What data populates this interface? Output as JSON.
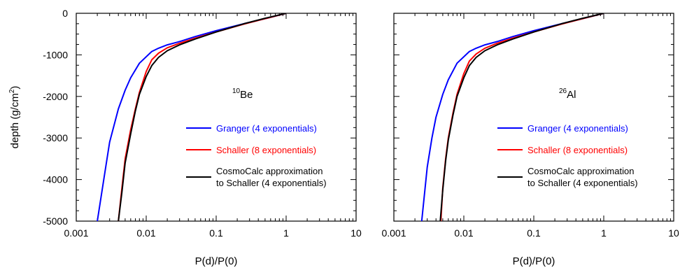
{
  "chart_data": [
    {
      "type": "line",
      "panel_label": {
        "sup": "10",
        "text": "Be"
      },
      "xlabel": "P(d)/P(0)",
      "ylabel": "depth (g/cm2)",
      "ylabel_parts": {
        "main": "depth (g/cm",
        "sup": "2",
        "end": ")"
      },
      "xscale": "log",
      "xlim": [
        0.001,
        10
      ],
      "ylim": [
        -5000,
        0
      ],
      "x_ticks": [
        0.001,
        0.01,
        0.1,
        1,
        10
      ],
      "x_tick_labels": [
        "0.001",
        "0.01",
        "0.1",
        "1",
        "10"
      ],
      "y_ticks": [
        0,
        -1000,
        -2000,
        -3000,
        -4000,
        -5000
      ],
      "y_tick_labels": [
        "0",
        "-1000",
        "-2000",
        "-3000",
        "-4000",
        "-5000"
      ],
      "grid": false,
      "legend_position": "lower-right",
      "series": [
        {
          "name": "Granger (4 exponentials)",
          "color": "#0000ff",
          "x": [
            1,
            0.5,
            0.25,
            0.1,
            0.05,
            0.03,
            0.02,
            0.015,
            0.012,
            0.008,
            0.006,
            0.005,
            0.004,
            0.003,
            0.0025,
            0.002
          ],
          "y": [
            0,
            -130,
            -250,
            -420,
            -560,
            -680,
            -760,
            -840,
            -920,
            -1200,
            -1550,
            -1850,
            -2300,
            -3100,
            -3950,
            -5000
          ]
        },
        {
          "name": "Schaller (8 exponentials)",
          "color": "#ff0000",
          "x": [
            1,
            0.5,
            0.25,
            0.1,
            0.05,
            0.03,
            0.02,
            0.015,
            0.012,
            0.01,
            0.008,
            0.007,
            0.006,
            0.005,
            0.0045,
            0.004
          ],
          "y": [
            0,
            -130,
            -260,
            -450,
            -600,
            -720,
            -830,
            -960,
            -1120,
            -1400,
            -1900,
            -2300,
            -2800,
            -3500,
            -4200,
            -5000
          ]
        },
        {
          "name": "CosmoCalc approximation\nto Schaller (4 exponentials)",
          "color": "#000000",
          "x": [
            1,
            0.5,
            0.25,
            0.1,
            0.05,
            0.03,
            0.02,
            0.015,
            0.012,
            0.01,
            0.008,
            0.007,
            0.006,
            0.005,
            0.0045,
            0.004
          ],
          "y": [
            0,
            -120,
            -250,
            -450,
            -620,
            -760,
            -900,
            -1060,
            -1260,
            -1520,
            -1950,
            -2350,
            -2900,
            -3600,
            -4300,
            -5000
          ]
        }
      ]
    },
    {
      "type": "line",
      "panel_label": {
        "sup": "26",
        "text": "Al"
      },
      "xlabel": "P(d)/P(0)",
      "ylabel": "",
      "xscale": "log",
      "xlim": [
        0.001,
        10
      ],
      "ylim": [
        -5000,
        0
      ],
      "x_ticks": [
        0.001,
        0.01,
        0.1,
        1,
        10
      ],
      "x_tick_labels": [
        "0.001",
        "0.01",
        "0.1",
        "1",
        "10"
      ],
      "y_ticks": [
        0,
        -1000,
        -2000,
        -3000,
        -4000,
        -5000
      ],
      "y_tick_labels": [],
      "grid": false,
      "legend_position": "lower-right",
      "series": [
        {
          "name": "Granger (4 exponentials)",
          "color": "#0000ff",
          "x": [
            1,
            0.5,
            0.25,
            0.1,
            0.05,
            0.03,
            0.02,
            0.015,
            0.012,
            0.008,
            0.006,
            0.005,
            0.004,
            0.0035,
            0.003,
            0.0025
          ],
          "y": [
            0,
            -130,
            -250,
            -420,
            -560,
            -680,
            -760,
            -840,
            -920,
            -1200,
            -1600,
            -1950,
            -2500,
            -3000,
            -3700,
            -5000
          ]
        },
        {
          "name": "Schaller (8 exponentials)",
          "color": "#ff0000",
          "x": [
            1,
            0.5,
            0.25,
            0.1,
            0.05,
            0.03,
            0.02,
            0.015,
            0.012,
            0.01,
            0.008,
            0.007,
            0.006,
            0.0055,
            0.005,
            0.0047
          ],
          "y": [
            0,
            -130,
            -260,
            -450,
            -600,
            -720,
            -840,
            -980,
            -1150,
            -1450,
            -1950,
            -2400,
            -3000,
            -3500,
            -4200,
            -5000
          ]
        },
        {
          "name": "CosmoCalc approximation\nto Schaller (4 exponentials)",
          "color": "#000000",
          "x": [
            1,
            0.5,
            0.25,
            0.1,
            0.05,
            0.03,
            0.02,
            0.015,
            0.012,
            0.01,
            0.008,
            0.007,
            0.006,
            0.0055,
            0.005,
            0.0046
          ],
          "y": [
            0,
            -120,
            -250,
            -450,
            -620,
            -760,
            -900,
            -1060,
            -1260,
            -1550,
            -2000,
            -2450,
            -3050,
            -3550,
            -4250,
            -5000
          ]
        }
      ]
    }
  ]
}
